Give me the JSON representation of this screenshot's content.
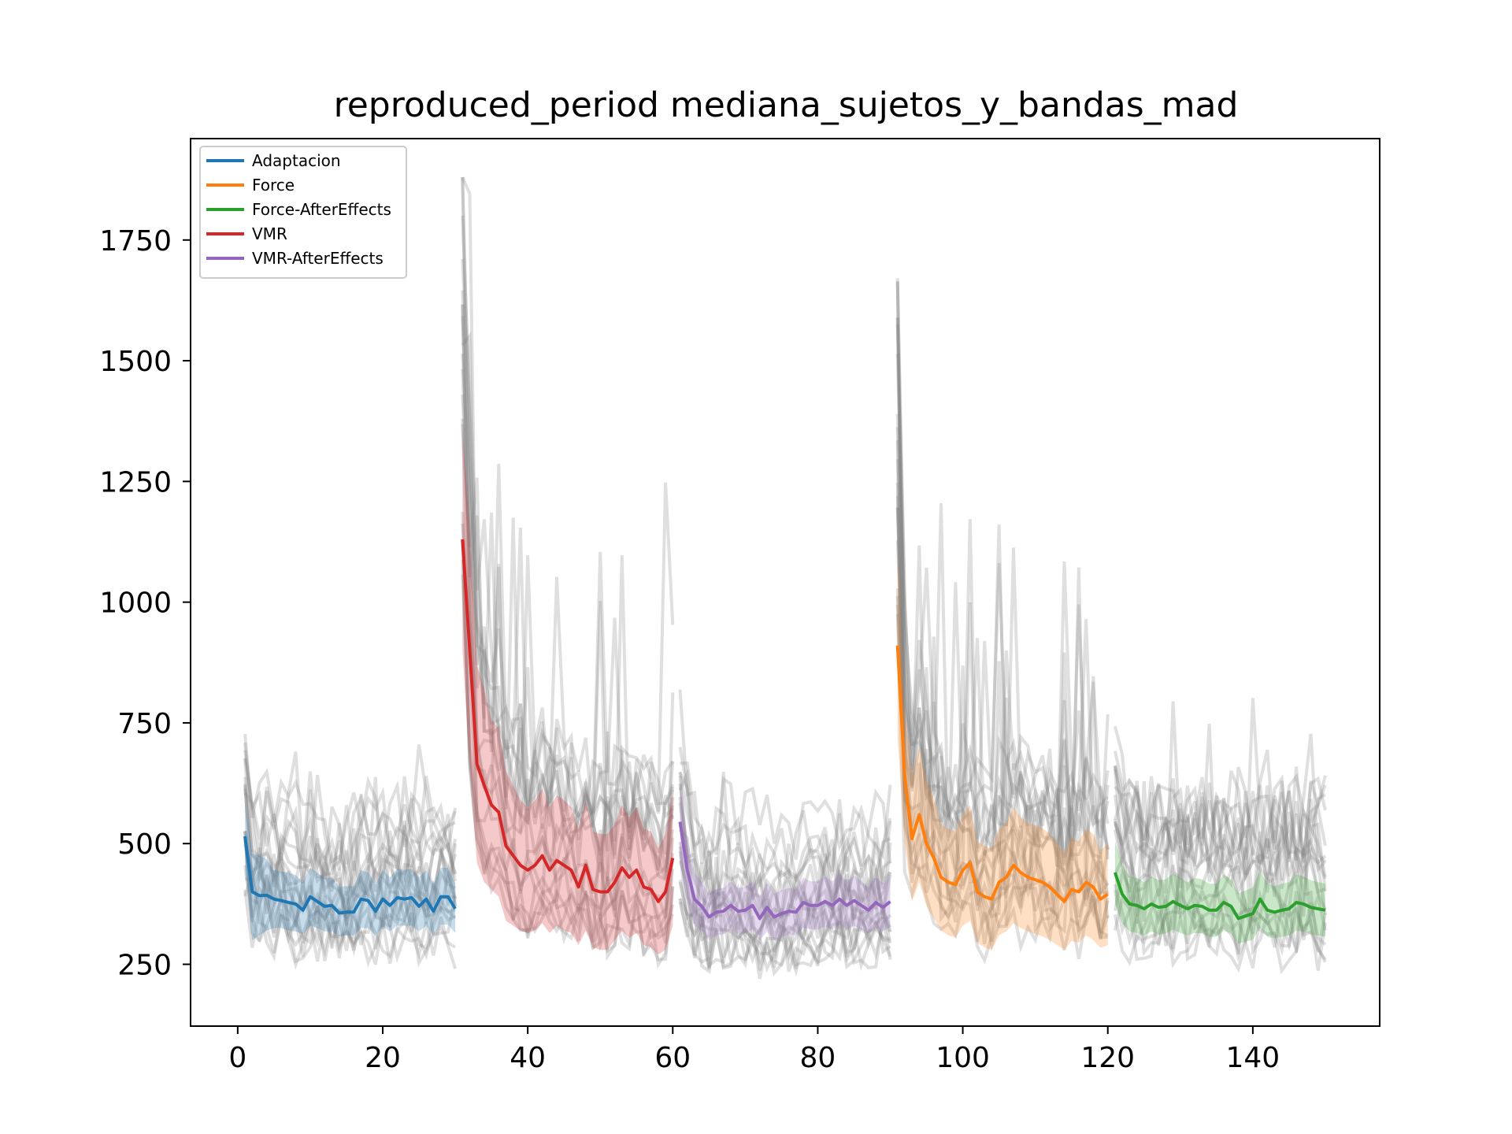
{
  "chart_data": {
    "type": "line",
    "title": "reproduced_period mediana_sujetos_y_bandas_mad",
    "xlabel": "",
    "ylabel": "",
    "xlim": [
      -6.5,
      157.5
    ],
    "ylim": [
      122,
      1960
    ],
    "xticks": [
      0,
      20,
      40,
      60,
      80,
      100,
      120,
      140
    ],
    "yticks": [
      250,
      500,
      750,
      1000,
      1250,
      1500,
      1750
    ],
    "grid": false,
    "legend_position": "top-left",
    "series": [
      {
        "name": "Adaptacion",
        "color": "#1f77b4",
        "x": [
          1,
          2,
          3,
          4,
          5,
          6,
          7,
          8,
          9,
          10,
          11,
          12,
          13,
          14,
          15,
          16,
          17,
          18,
          19,
          20,
          21,
          22,
          23,
          24,
          25,
          26,
          27,
          28,
          29,
          30
        ],
        "median": [
          515,
          400,
          392,
          393,
          385,
          382,
          378,
          375,
          362,
          390,
          380,
          370,
          372,
          356,
          358,
          358,
          385,
          382,
          360,
          385,
          372,
          388,
          385,
          388,
          370,
          385,
          360,
          390,
          390,
          365
        ],
        "band_lower": [
          440,
          300,
          310,
          320,
          325,
          325,
          320,
          318,
          312,
          330,
          325,
          318,
          318,
          308,
          310,
          310,
          325,
          325,
          310,
          328,
          318,
          330,
          330,
          330,
          318,
          330,
          310,
          332,
          332,
          315
        ],
        "band_upper": [
          590,
          480,
          475,
          468,
          445,
          442,
          440,
          435,
          420,
          450,
          440,
          428,
          430,
          410,
          412,
          412,
          445,
          440,
          415,
          445,
          430,
          448,
          445,
          448,
          430,
          445,
          415,
          450,
          450,
          418
        ]
      },
      {
        "name": "VMR",
        "color": "#d62728",
        "x": [
          31,
          32,
          33,
          34,
          35,
          36,
          37,
          38,
          39,
          40,
          41,
          42,
          43,
          44,
          45,
          46,
          47,
          48,
          49,
          50,
          51,
          52,
          53,
          54,
          55,
          56,
          57,
          58,
          59,
          60
        ],
        "median": [
          1130,
          900,
          665,
          620,
          580,
          565,
          495,
          475,
          455,
          445,
          455,
          475,
          445,
          465,
          455,
          445,
          410,
          455,
          405,
          400,
          400,
          420,
          450,
          430,
          445,
          410,
          405,
          380,
          400,
          470
        ],
        "band_lower": [
          900,
          650,
          460,
          420,
          405,
          390,
          340,
          330,
          320,
          315,
          320,
          335,
          315,
          330,
          320,
          315,
          290,
          320,
          285,
          280,
          280,
          300,
          320,
          305,
          315,
          290,
          285,
          270,
          280,
          330
        ],
        "band_upper": [
          1360,
          1150,
          870,
          820,
          755,
          740,
          650,
          620,
          590,
          575,
          590,
          615,
          575,
          600,
          590,
          575,
          530,
          590,
          525,
          520,
          520,
          540,
          580,
          555,
          575,
          530,
          525,
          490,
          520,
          610
        ]
      },
      {
        "name": "VMR-AfterEffects",
        "color": "#9467bd",
        "x": [
          61,
          62,
          63,
          64,
          65,
          66,
          67,
          68,
          69,
          70,
          71,
          72,
          73,
          74,
          75,
          76,
          77,
          78,
          79,
          80,
          81,
          82,
          83,
          84,
          85,
          86,
          87,
          88,
          89,
          90
        ],
        "median": [
          545,
          445,
          385,
          370,
          348,
          358,
          360,
          372,
          360,
          362,
          372,
          345,
          368,
          348,
          355,
          360,
          358,
          378,
          372,
          372,
          380,
          372,
          385,
          372,
          382,
          372,
          362,
          378,
          368,
          380
        ],
        "band_lower": [
          460,
          375,
          330,
          320,
          300,
          310,
          312,
          322,
          312,
          314,
          322,
          300,
          318,
          300,
          306,
          312,
          310,
          326,
          322,
          322,
          328,
          322,
          332,
          322,
          330,
          322,
          314,
          326,
          318,
          328
        ],
        "band_upper": [
          630,
          515,
          440,
          420,
          396,
          406,
          408,
          422,
          408,
          410,
          422,
          390,
          418,
          396,
          404,
          408,
          406,
          430,
          422,
          422,
          432,
          422,
          438,
          422,
          434,
          422,
          410,
          430,
          418,
          432
        ]
      },
      {
        "name": "Force",
        "color": "#ff7f0e",
        "x": [
          91,
          92,
          93,
          94,
          95,
          96,
          97,
          98,
          99,
          100,
          101,
          102,
          103,
          104,
          105,
          106,
          107,
          108,
          109,
          110,
          111,
          112,
          113,
          114,
          115,
          116,
          117,
          118,
          119,
          120
        ],
        "median": [
          910,
          640,
          510,
          560,
          500,
          470,
          430,
          420,
          415,
          445,
          460,
          400,
          390,
          385,
          420,
          430,
          455,
          440,
          430,
          425,
          420,
          410,
          395,
          380,
          405,
          400,
          420,
          410,
          385,
          395
        ],
        "band_lower": [
          720,
          500,
          380,
          420,
          370,
          345,
          320,
          310,
          305,
          330,
          340,
          295,
          285,
          280,
          310,
          318,
          335,
          325,
          318,
          312,
          308,
          300,
          290,
          280,
          298,
          295,
          310,
          300,
          284,
          290
        ],
        "band_upper": [
          1100,
          780,
          640,
          700,
          630,
          595,
          540,
          530,
          525,
          560,
          580,
          505,
          495,
          490,
          530,
          542,
          575,
          555,
          542,
          538,
          532,
          520,
          500,
          480,
          512,
          505,
          530,
          520,
          486,
          500
        ]
      },
      {
        "name": "Force-AfterEffects",
        "color": "#2ca02c",
        "x": [
          121,
          122,
          123,
          124,
          125,
          126,
          127,
          128,
          129,
          130,
          131,
          132,
          133,
          134,
          135,
          136,
          137,
          138,
          139,
          140,
          141,
          142,
          143,
          144,
          145,
          146,
          147,
          148,
          149,
          150
        ],
        "median": [
          440,
          395,
          375,
          372,
          365,
          375,
          368,
          370,
          380,
          372,
          365,
          372,
          370,
          362,
          362,
          378,
          370,
          345,
          350,
          355,
          385,
          362,
          358,
          362,
          365,
          378,
          375,
          368,
          365,
          362
        ],
        "band_lower": [
          375,
          335,
          318,
          315,
          310,
          318,
          312,
          314,
          322,
          315,
          310,
          315,
          314,
          307,
          307,
          320,
          314,
          293,
          297,
          301,
          326,
          307,
          304,
          307,
          310,
          320,
          318,
          312,
          310,
          307
        ],
        "band_upper": [
          505,
          455,
          432,
          429,
          420,
          432,
          424,
          426,
          438,
          429,
          420,
          429,
          426,
          417,
          417,
          436,
          426,
          397,
          403,
          409,
          444,
          417,
          412,
          417,
          420,
          436,
          432,
          424,
          420,
          417
        ]
      }
    ],
    "background_traces": {
      "count_per_segment": 20,
      "color": "#808080",
      "opacity": 0.25
    }
  }
}
